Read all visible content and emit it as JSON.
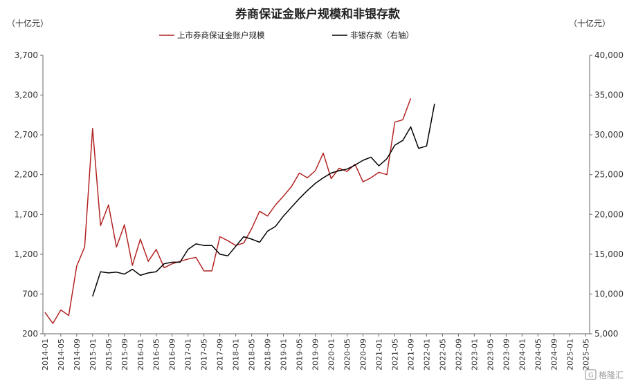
{
  "chart_data": {
    "type": "line",
    "title": "券商保证金账户规模和非银存款",
    "left_unit": "（十亿元）",
    "right_unit": "（十亿元）",
    "ylim": [
      200,
      3700
    ],
    "y2lim": [
      5000,
      40000
    ],
    "yticks": [
      "3,700",
      "3,200",
      "2,700",
      "2,200",
      "1,700",
      "1,200",
      "700",
      "200"
    ],
    "y2ticks": [
      "40,000",
      "35,000",
      "30,000",
      "25,000",
      "20,000",
      "15,000",
      "10,000",
      "5,000"
    ],
    "xticks": [
      "2014-01",
      "2014-05",
      "2014-09",
      "2015-01",
      "2015-05",
      "2015-09",
      "2016-01",
      "2016-05",
      "2016-09",
      "2017-01",
      "2017-05",
      "2017-09",
      "2018-01",
      "2018-05",
      "2018-09",
      "2019-01",
      "2019-05",
      "2019-09",
      "2020-01",
      "2020-05",
      "2020-09",
      "2021-01",
      "2021-05",
      "2021-09",
      "2022-01",
      "2022-05",
      "2022-09",
      "2023-01",
      "2023-05",
      "2023-09",
      "2024-01",
      "2024-05",
      "2024-09",
      "2025-01",
      "2025-05"
    ],
    "grid": false,
    "legend_position": "top",
    "series": [
      {
        "name": "上市券商保证金账户规模",
        "axis": "left",
        "color": "#B22222",
        "points": [
          [
            "2014-01",
            470
          ],
          [
            "2014-03",
            330
          ],
          [
            "2014-05",
            500
          ],
          [
            "2014-07",
            430
          ],
          [
            "2014-09",
            1050
          ],
          [
            "2014-11",
            1290
          ],
          [
            "2015-01",
            2780
          ],
          [
            "2015-03",
            1560
          ],
          [
            "2015-05",
            1820
          ],
          [
            "2015-07",
            1290
          ],
          [
            "2015-09",
            1570
          ],
          [
            "2015-11",
            1060
          ],
          [
            "2016-01",
            1390
          ],
          [
            "2016-03",
            1110
          ],
          [
            "2016-05",
            1260
          ],
          [
            "2016-07",
            1030
          ],
          [
            "2016-09",
            1080
          ],
          [
            "2016-11",
            1110
          ],
          [
            "2017-01",
            1140
          ],
          [
            "2017-03",
            1160
          ],
          [
            "2017-05",
            990
          ],
          [
            "2017-07",
            990
          ],
          [
            "2017-09",
            1420
          ],
          [
            "2017-11",
            1370
          ],
          [
            "2018-01",
            1310
          ],
          [
            "2018-03",
            1340
          ],
          [
            "2018-05",
            1520
          ],
          [
            "2018-07",
            1740
          ],
          [
            "2018-09",
            1680
          ],
          [
            "2018-11",
            1820
          ],
          [
            "2019-01",
            1930
          ],
          [
            "2019-03",
            2050
          ],
          [
            "2019-05",
            2220
          ],
          [
            "2019-07",
            2160
          ],
          [
            "2019-09",
            2250
          ],
          [
            "2019-11",
            2470
          ],
          [
            "2020-01",
            2150
          ],
          [
            "2020-03",
            2280
          ],
          [
            "2020-05",
            2240
          ],
          [
            "2020-07",
            2330
          ],
          [
            "2020-09",
            2110
          ],
          [
            "2020-11",
            2160
          ],
          [
            "2021-01",
            2230
          ],
          [
            "2021-03",
            2200
          ],
          [
            "2021-05",
            2860
          ],
          [
            "2021-07",
            2890
          ],
          [
            "2021-09",
            3160
          ]
        ]
      },
      {
        "name": "非银存款（右轴）",
        "axis": "right",
        "color": "#000000",
        "points": [
          [
            "2015-01",
            9700
          ],
          [
            "2015-03",
            12800
          ],
          [
            "2015-05",
            12650
          ],
          [
            "2015-07",
            12750
          ],
          [
            "2015-09",
            12500
          ],
          [
            "2015-11",
            13100
          ],
          [
            "2016-01",
            12350
          ],
          [
            "2016-03",
            12650
          ],
          [
            "2016-05",
            12800
          ],
          [
            "2016-07",
            13800
          ],
          [
            "2016-09",
            14000
          ],
          [
            "2016-11",
            14000
          ],
          [
            "2017-01",
            15600
          ],
          [
            "2017-03",
            16300
          ],
          [
            "2017-05",
            16100
          ],
          [
            "2017-07",
            16100
          ],
          [
            "2017-09",
            15000
          ],
          [
            "2017-11",
            14800
          ],
          [
            "2018-01",
            16000
          ],
          [
            "2018-03",
            17200
          ],
          [
            "2018-05",
            16900
          ],
          [
            "2018-07",
            16500
          ],
          [
            "2018-09",
            17900
          ],
          [
            "2018-11",
            18500
          ],
          [
            "2019-01",
            19800
          ],
          [
            "2019-03",
            20900
          ],
          [
            "2019-05",
            22000
          ],
          [
            "2019-07",
            23000
          ],
          [
            "2019-09",
            23900
          ],
          [
            "2019-11",
            24600
          ],
          [
            "2020-01",
            25200
          ],
          [
            "2020-03",
            25500
          ],
          [
            "2020-05",
            25700
          ],
          [
            "2020-07",
            26200
          ],
          [
            "2020-09",
            26800
          ],
          [
            "2020-11",
            27200
          ],
          [
            "2021-01",
            26100
          ],
          [
            "2021-03",
            27000
          ],
          [
            "2021-05",
            28700
          ],
          [
            "2021-07",
            29300
          ],
          [
            "2021-09",
            31000
          ],
          [
            "2021-11",
            28300
          ],
          [
            "2022-01",
            28600
          ],
          [
            "2022-03",
            33900
          ]
        ]
      }
    ],
    "watermark": "格隆汇"
  }
}
